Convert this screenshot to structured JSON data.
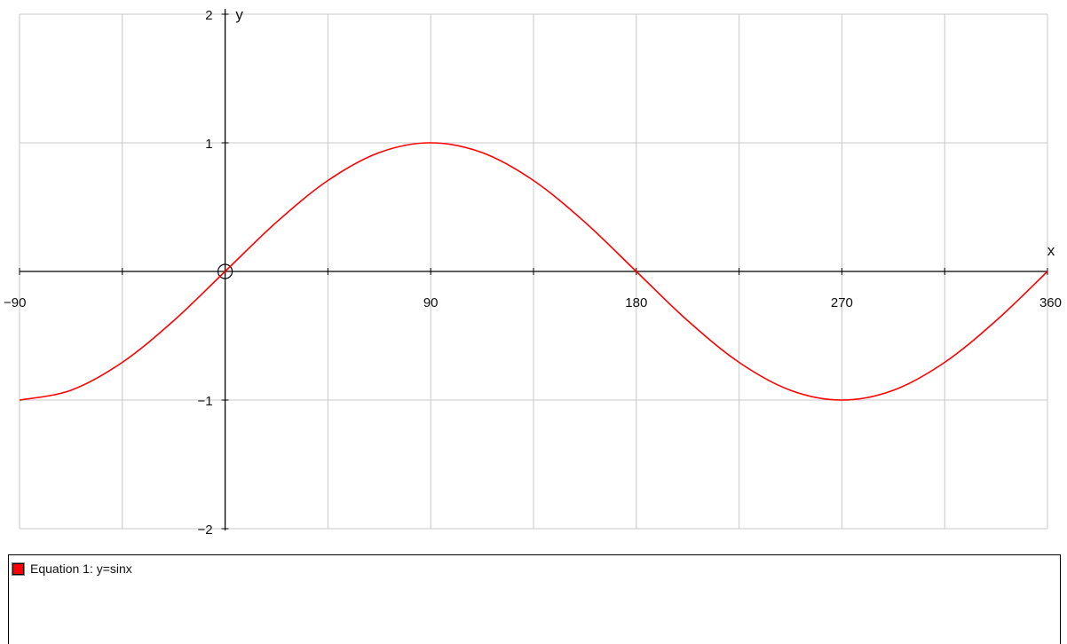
{
  "chart_data": {
    "type": "line",
    "x": [
      -90,
      -67.5,
      -45,
      -22.5,
      0,
      22.5,
      45,
      67.5,
      90,
      112.5,
      135,
      157.5,
      180,
      202.5,
      225,
      247.5,
      270,
      292.5,
      315,
      337.5,
      360
    ],
    "series": [
      {
        "name": "Equation 1: y=sinx",
        "color": "#ff0000",
        "values": [
          -1,
          -0.924,
          -0.707,
          -0.383,
          0,
          0.383,
          0.707,
          0.924,
          1,
          0.924,
          0.707,
          0.383,
          0,
          -0.383,
          -0.707,
          -0.924,
          -1,
          -0.924,
          -0.707,
          -0.383,
          0
        ]
      }
    ],
    "xlabel": "x",
    "ylabel": "y",
    "xlim": [
      -90,
      360
    ],
    "ylim": [
      -2,
      2
    ],
    "x_ticks": [
      -90,
      90,
      180,
      270,
      360
    ],
    "x_tick_labels": [
      "−90",
      "90",
      "180",
      "270",
      "360"
    ],
    "y_ticks": [
      2,
      1,
      -1,
      -2
    ],
    "y_tick_labels": [
      "2",
      "1",
      "−1",
      "−2"
    ],
    "x_grid_step": 45,
    "y_grid_step": 1,
    "grid": true,
    "origin_marker": "circle",
    "legend_position": "bottom"
  },
  "legend": {
    "entries": [
      {
        "label": "Equation 1: y=sinx",
        "color": "#ff0000"
      }
    ]
  }
}
